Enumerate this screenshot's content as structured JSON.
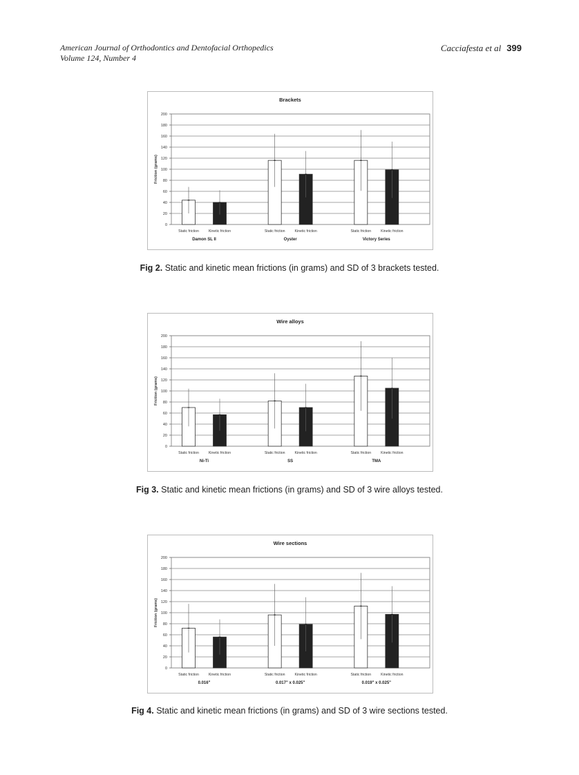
{
  "header": {
    "journal": "American Journal of Orthodontics and Dentofacial Orthopedics",
    "volume": "Volume 124, Number 4",
    "authors": "Cacciafesta et al",
    "page": "399"
  },
  "figures": [
    {
      "label": "Fig 2.",
      "caption": "Static and kinetic mean frictions (in grams) and SD of 3 brackets tested."
    },
    {
      "label": "Fig 3.",
      "caption": "Static and kinetic mean frictions (in grams) and SD of 3 wire alloys tested."
    },
    {
      "label": "Fig 4.",
      "caption": "Static and kinetic mean frictions (in grams) and SD of 3 wire sections tested."
    }
  ],
  "chart_data": [
    {
      "type": "bar",
      "title": "Brackets",
      "xlabel": "",
      "ylabel": "Friction (grams)",
      "ylim": [
        0,
        200
      ],
      "yticks": [
        0,
        20,
        40,
        60,
        80,
        100,
        120,
        140,
        160,
        180,
        200
      ],
      "grid": true,
      "categories": [
        "Damon SL II",
        "Oyster",
        "Victory Series"
      ],
      "series": [
        {
          "name": "Static friction",
          "color": "#ffffff",
          "values": [
            44,
            116,
            116
          ],
          "sd": [
            24,
            48,
            55
          ]
        },
        {
          "name": "Kinetic friction",
          "color": "#222222",
          "values": [
            40,
            91,
            99
          ],
          "sd": [
            22,
            42,
            51
          ]
        }
      ]
    },
    {
      "type": "bar",
      "title": "Wire alloys",
      "xlabel": "",
      "ylabel": "Friction (grams)",
      "ylim": [
        0,
        200
      ],
      "yticks": [
        0,
        20,
        40,
        60,
        80,
        100,
        120,
        140,
        160,
        180,
        200
      ],
      "grid": true,
      "categories": [
        "Ni-Ti",
        "SS",
        "TMA"
      ],
      "series": [
        {
          "name": "Static friction",
          "color": "#ffffff",
          "values": [
            70,
            82,
            127
          ],
          "sd": [
            34,
            50,
            63
          ]
        },
        {
          "name": "Kinetic friction",
          "color": "#222222",
          "values": [
            57,
            70,
            105
          ],
          "sd": [
            29,
            43,
            55
          ]
        }
      ]
    },
    {
      "type": "bar",
      "title": "Wire sections",
      "xlabel": "",
      "ylabel": "Friction (grams)",
      "ylim": [
        0,
        200
      ],
      "yticks": [
        0,
        20,
        40,
        60,
        80,
        100,
        120,
        140,
        160,
        180,
        200
      ],
      "grid": true,
      "categories": [
        "0.016\"",
        "0.017\" x 0.025\"",
        "0.019\" x 0.025\""
      ],
      "series": [
        {
          "name": "Static friction",
          "color": "#ffffff",
          "values": [
            72,
            96,
            112
          ],
          "sd": [
            44,
            56,
            60
          ]
        },
        {
          "name": "Kinetic friction",
          "color": "#222222",
          "values": [
            56,
            79,
            97
          ],
          "sd": [
            32,
            49,
            51
          ]
        }
      ]
    }
  ]
}
